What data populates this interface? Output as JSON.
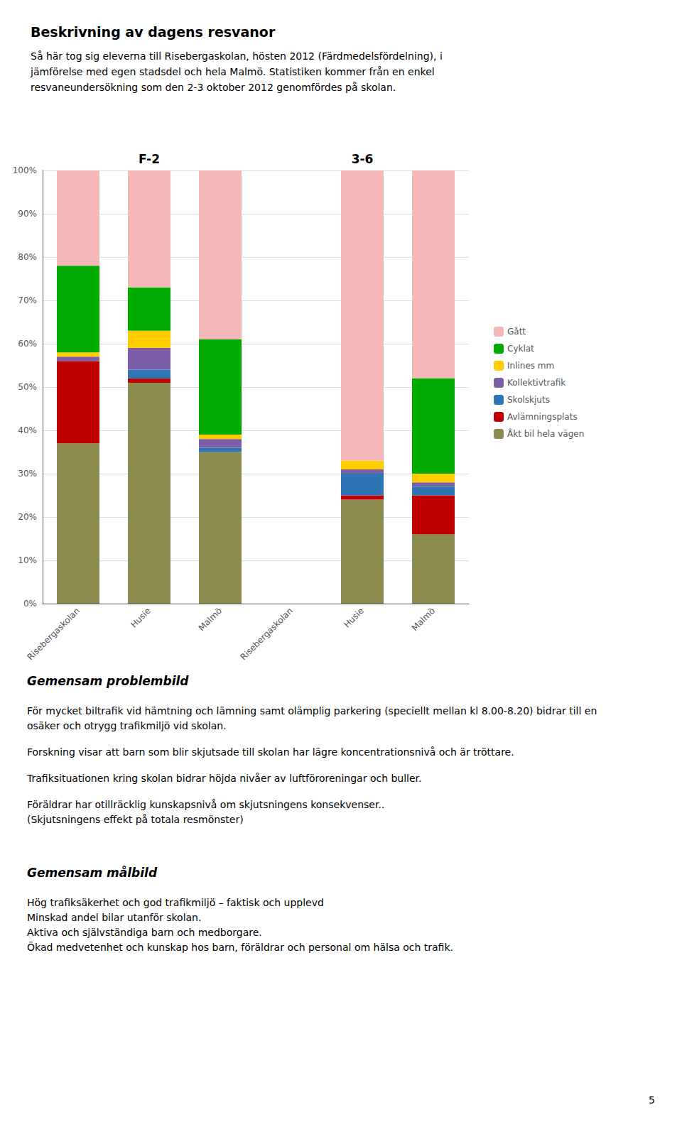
{
  "chart_data": {
    "type": "bar",
    "title": "Beskrivning av dagens resvanor",
    "subtitle": "Så här tog sig eleverna till Risebergaskolan, hösten 2012 (Färdmedelsfördelning), i\njämförelse med egen stadsdel och hela Malmö. Statistiken kommer från en enkel\nresvaneundersökning som den 2-3 oktober 2012 genomfördes på skolan.",
    "categories": [
      "Risebergaskolan",
      "Husie",
      "Malmö",
      "Risebergaskolan",
      "Husie",
      "Malmö"
    ],
    "series": [
      {
        "name": "Åkt bil hela vägen",
        "color": "#8b8b50",
        "values": [
          37,
          51,
          35,
          0,
          24,
          16
        ]
      },
      {
        "name": "Avlämningsplats",
        "color": "#c00000",
        "values": [
          19,
          1,
          0,
          0,
          1,
          9
        ]
      },
      {
        "name": "Skolskjuts",
        "color": "#2e75b6",
        "values": [
          0,
          2,
          1,
          0,
          5,
          2
        ]
      },
      {
        "name": "Kollektivtrafik",
        "color": "#7b5ea7",
        "values": [
          1,
          5,
          2,
          0,
          1,
          1
        ]
      },
      {
        "name": "Inlines mm",
        "color": "#ffcc00",
        "values": [
          1,
          4,
          1,
          0,
          2,
          2
        ]
      },
      {
        "name": "Cyklat",
        "color": "#00aa00",
        "values": [
          20,
          10,
          22,
          0,
          0,
          22
        ]
      },
      {
        "name": "Gått",
        "color": "#f4b8b8",
        "values": [
          22,
          27,
          39,
          0,
          67,
          48
        ]
      }
    ],
    "stacked": true,
    "ylim": [
      0,
      100
    ],
    "yticks": [
      {
        "value": 0,
        "label": "0%"
      },
      {
        "value": 10,
        "label": "10%"
      },
      {
        "value": 20,
        "label": "20%"
      },
      {
        "value": 30,
        "label": "30%"
      },
      {
        "value": 40,
        "label": "40%"
      },
      {
        "value": 50,
        "label": "50%"
      },
      {
        "value": 60,
        "label": "60%"
      },
      {
        "value": 70,
        "label": "70%"
      },
      {
        "value": 80,
        "label": "80%"
      },
      {
        "value": 90,
        "label": "90%"
      },
      {
        "value": 100,
        "label": "100%"
      }
    ],
    "grid": true,
    "legend": "right",
    "annotations": [
      {
        "text": "F-2",
        "x": 1
      },
      {
        "text": "3-6",
        "x": 4
      },
      {
        "title": "Gemensam problembild",
        "text": [
          "För mycket biltrafik vid hämtning och lämning samt olämplig parkering (speciellt mellan kl 8.00-8.20) bidrar till en osäker och otrygg trafikmiljö vid skolan.",
          "Forskning visar att barn som blir skjutsade till skolan har lägre koncentrationsnivå och är tröttare.",
          "Trafiksituationen kring skolan bidrar höjda nivåer av luftföroreningar och buller.",
          "Föräldrar har otillräcklig kunskapsnivå om skjutsningens konsekvenser..\n(Skjutsningens effekt på totala resmönster)"
        ]
      },
      {
        "title": "Gemensam målbild",
        "text": [
          "Hög trafiksäkerhet och god trafikmiljö – faktisk och upplevd\nMinskad andel bilar utanför skolan.\nAktiva och självständiga barn och medborgare.\nÖkad medvetenhet och kunskap hos barn, föräldrar och personal om hälsa och trafik."
        ]
      },
      {
        "text": "5"
      }
    ]
  }
}
